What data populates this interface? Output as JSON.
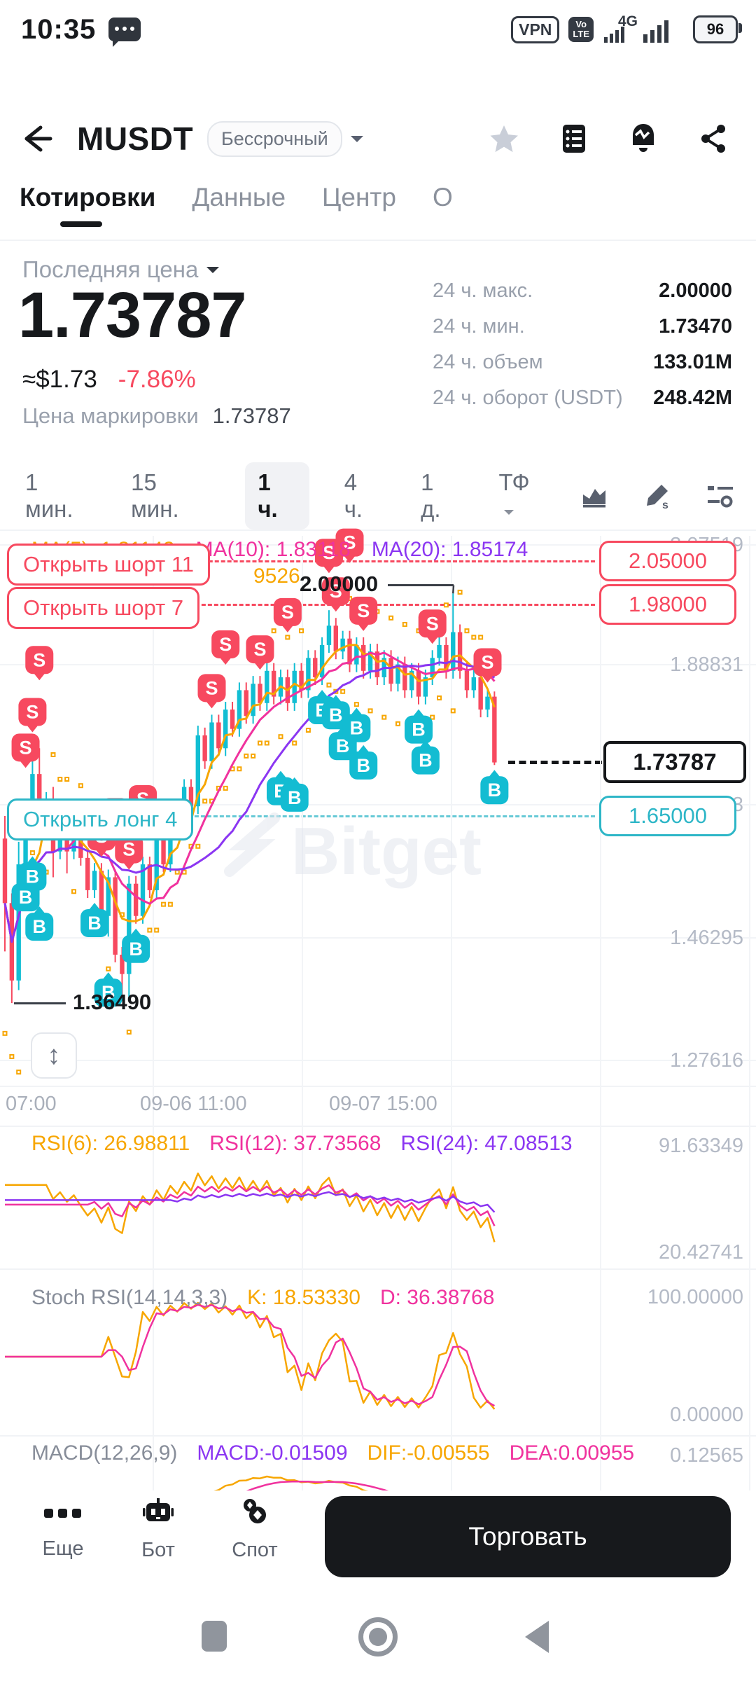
{
  "status_bar": {
    "time": "10:35",
    "vpn": "VPN",
    "volte_line1": "Vo",
    "volte_line2": "LTE",
    "net": "4G",
    "battery": "96"
  },
  "header": {
    "symbol": "MUSDT",
    "contract": "Бессрочный"
  },
  "tabs": [
    {
      "label": "Котировки",
      "active": true
    },
    {
      "label": "Данные",
      "active": false
    },
    {
      "label": "Центр",
      "active": false
    },
    {
      "label": "О",
      "active": false
    }
  ],
  "price_panel": {
    "label": "Последняя цена",
    "price": "1.73787",
    "approx": "≈$1.73",
    "change": "-7.86%",
    "mark_label": "Цена маркировки",
    "mark_price": "1.73787"
  },
  "stats": [
    {
      "label": "24 ч. макс.",
      "value": "2.00000"
    },
    {
      "label": "24 ч. мин.",
      "value": "1.73470"
    },
    {
      "label": "24 ч. объем",
      "value": "133.01M"
    },
    {
      "label": "24 ч. оборот (USDT)",
      "value": "248.42M"
    }
  ],
  "timeframes": [
    {
      "label": "1 мин.",
      "active": false
    },
    {
      "label": "15 мин.",
      "active": false
    },
    {
      "label": "1 ч.",
      "active": true
    },
    {
      "label": "4 ч.",
      "active": false
    },
    {
      "label": "1 д.",
      "active": false
    },
    {
      "label": "ТФ",
      "active": false,
      "dropdown": true
    }
  ],
  "chart": {
    "ma_labels": [
      {
        "text": "MA(5): 1.81143",
        "color": "#f7a600"
      },
      {
        "text": "MA(10): 1.83118",
        "color": "#f0329e"
      },
      {
        "text": "MA(20): 1.85174",
        "color": "#8b36f2"
      }
    ],
    "partial_indicator": "9526",
    "signals": [
      {
        "text": "Открыть шорт 11",
        "price": "2.05000",
        "kind": "short"
      },
      {
        "text": "Открыть шорт 7",
        "price": "1.98000",
        "kind": "short"
      },
      {
        "text": "Открыть лонг 4",
        "price": "1.65000",
        "kind": "long"
      }
    ],
    "current_price": "1.73787",
    "high_annotation": "2.00000",
    "low_annotation": "1.36490",
    "y_axis": [
      "2.07519",
      "1.88831",
      "1.67563",
      "1.46295",
      "1.27616"
    ],
    "x_axis": [
      "07:00",
      "09-06 11:00",
      "09-07 15:00"
    ],
    "watermark": "Bitget"
  },
  "chart_data": {
    "type": "candlestick",
    "interval": "1h",
    "y_top_label": 2.07519,
    "y_bottom_label": 1.27616,
    "session_high": 2.0,
    "session_low": 1.3649,
    "last_price": 1.73787,
    "candles": [
      [
        1.62,
        1.655,
        1.445,
        1.52
      ],
      [
        1.52,
        1.535,
        1.3649,
        1.4
      ],
      [
        1.4,
        1.615,
        1.385,
        1.58
      ],
      [
        1.58,
        1.672,
        1.568,
        1.66
      ],
      [
        1.66,
        1.775,
        1.648,
        1.72
      ],
      [
        1.72,
        1.76,
        1.618,
        1.63
      ],
      [
        1.63,
        1.692,
        1.618,
        1.68
      ],
      [
        1.68,
        1.7,
        1.56,
        1.6
      ],
      [
        1.6,
        1.662,
        1.588,
        1.65
      ],
      [
        1.65,
        1.662,
        1.566,
        1.6
      ],
      [
        1.6,
        1.652,
        1.588,
        1.64
      ],
      [
        1.64,
        1.652,
        1.578,
        1.59
      ],
      [
        1.59,
        1.602,
        1.528,
        1.54
      ],
      [
        1.54,
        1.582,
        1.528,
        1.57
      ],
      [
        1.57,
        1.582,
        1.488,
        1.5
      ],
      [
        1.5,
        1.572,
        1.468,
        1.56
      ],
      [
        1.56,
        1.572,
        1.428,
        1.44
      ],
      [
        1.44,
        1.452,
        1.372,
        1.41
      ],
      [
        1.41,
        1.562,
        1.37,
        1.55
      ],
      [
        1.55,
        1.562,
        1.488,
        1.5
      ],
      [
        1.5,
        1.592,
        1.488,
        1.58
      ],
      [
        1.58,
        1.592,
        1.528,
        1.54
      ],
      [
        1.54,
        1.632,
        1.528,
        1.62
      ],
      [
        1.62,
        1.632,
        1.568,
        1.58
      ],
      [
        1.58,
        1.672,
        1.568,
        1.66
      ],
      [
        1.66,
        1.672,
        1.618,
        1.63
      ],
      [
        1.63,
        1.712,
        1.618,
        1.7
      ],
      [
        1.7,
        1.712,
        1.658,
        1.67
      ],
      [
        1.67,
        1.795,
        1.658,
        1.78
      ],
      [
        1.78,
        1.792,
        1.728,
        1.74
      ],
      [
        1.74,
        1.812,
        1.728,
        1.8
      ],
      [
        1.8,
        1.812,
        1.748,
        1.76
      ],
      [
        1.76,
        1.832,
        1.748,
        1.82
      ],
      [
        1.82,
        1.832,
        1.778,
        1.79
      ],
      [
        1.79,
        1.862,
        1.778,
        1.85
      ],
      [
        1.85,
        1.862,
        1.798,
        1.81
      ],
      [
        1.81,
        1.872,
        1.798,
        1.86
      ],
      [
        1.86,
        1.872,
        1.818,
        1.83
      ],
      [
        1.83,
        1.892,
        1.818,
        1.88
      ],
      [
        1.88,
        1.892,
        1.828,
        1.84
      ],
      [
        1.84,
        1.882,
        1.828,
        1.87
      ],
      [
        1.87,
        1.882,
        1.818,
        1.83
      ],
      [
        1.83,
        1.892,
        1.818,
        1.88
      ],
      [
        1.88,
        1.892,
        1.838,
        1.85
      ],
      [
        1.85,
        1.912,
        1.838,
        1.9
      ],
      [
        1.9,
        1.912,
        1.858,
        1.87
      ],
      [
        1.87,
        1.932,
        1.858,
        1.92
      ],
      [
        1.92,
        1.974,
        1.908,
        1.95
      ],
      [
        1.95,
        1.962,
        1.898,
        1.91
      ],
      [
        1.91,
        1.942,
        1.898,
        1.93
      ],
      [
        1.93,
        1.942,
        1.878,
        1.89
      ],
      [
        1.89,
        1.932,
        1.878,
        1.92
      ],
      [
        1.92,
        1.932,
        1.868,
        1.88
      ],
      [
        1.88,
        1.922,
        1.868,
        1.91
      ],
      [
        1.91,
        1.922,
        1.858,
        1.87
      ],
      [
        1.87,
        1.912,
        1.858,
        1.9
      ],
      [
        1.9,
        1.912,
        1.848,
        1.86
      ],
      [
        1.86,
        1.902,
        1.848,
        1.89
      ],
      [
        1.89,
        1.902,
        1.838,
        1.85
      ],
      [
        1.85,
        1.892,
        1.838,
        1.88
      ],
      [
        1.88,
        1.892,
        1.828,
        1.84
      ],
      [
        1.84,
        1.882,
        1.828,
        1.87
      ],
      [
        1.87,
        1.912,
        1.858,
        1.9
      ],
      [
        1.9,
        1.932,
        1.888,
        1.92
      ],
      [
        1.92,
        1.932,
        1.868,
        1.88
      ],
      [
        1.88,
        2.0,
        1.868,
        1.94
      ],
      [
        1.94,
        1.952,
        1.868,
        1.88
      ],
      [
        1.88,
        1.892,
        1.838,
        1.85
      ],
      [
        1.85,
        1.882,
        1.838,
        1.87
      ],
      [
        1.87,
        1.882,
        1.808,
        1.82
      ],
      [
        1.82,
        1.852,
        1.808,
        1.84
      ],
      [
        1.84,
        1.848,
        1.734,
        1.738
      ]
    ],
    "marker_labels": {
      "buy": "B",
      "sell": "S"
    },
    "sell_markers": [
      [
        3,
        1
      ],
      [
        4,
        0
      ],
      [
        5,
        2
      ],
      [
        14,
        0
      ],
      [
        16,
        1
      ],
      [
        18,
        0
      ],
      [
        20,
        1
      ],
      [
        30,
        0
      ],
      [
        32,
        1
      ],
      [
        37,
        0
      ],
      [
        41,
        1
      ],
      [
        47,
        1
      ],
      [
        48,
        0
      ],
      [
        50,
        2
      ],
      [
        52,
        0
      ],
      [
        62,
        0
      ],
      [
        70,
        0
      ]
    ],
    "buy_markers": [
      [
        3,
        0
      ],
      [
        4,
        1
      ],
      [
        5,
        2
      ],
      [
        13,
        0
      ],
      [
        15,
        1
      ],
      [
        19,
        0
      ],
      [
        40,
        2
      ],
      [
        42,
        2
      ],
      [
        46,
        0
      ],
      [
        48,
        1
      ],
      [
        49,
        2
      ],
      [
        51,
        1
      ],
      [
        52,
        2
      ],
      [
        60,
        0
      ],
      [
        61,
        1
      ],
      [
        71,
        0
      ]
    ],
    "ma_periods": [
      5,
      10,
      20
    ],
    "colors": {
      "up": "#11bed3",
      "down": "#f7495f",
      "ma5": "#f7a600",
      "ma10": "#f0329e",
      "ma20": "#8b36f2",
      "sar": "#f7a600",
      "grid": "#f2f4f7"
    }
  },
  "rsi": {
    "labels": [
      {
        "text": "RSI(6): 26.98811",
        "color": "#f7a600"
      },
      {
        "text": "RSI(12): 37.73568",
        "color": "#f0329e"
      },
      {
        "text": "RSI(24): 47.08513",
        "color": "#8b36f2"
      }
    ],
    "periods": [
      6,
      12,
      24
    ],
    "axis_max": "91.63349",
    "axis_min": "20.42741"
  },
  "stoch": {
    "title": "Stoch RSI(14,14,3,3)",
    "k_label": "K: 18.53330",
    "d_label": "D: 36.38768",
    "axis_max": "100.00000",
    "axis_min": "0.00000"
  },
  "macd": {
    "title": "MACD(12,26,9)",
    "macd_label": "MACD:-0.01509",
    "dif_label": "DIF:-0.00555",
    "dea_label": "DEA:0.00955",
    "axis_max": "0.12565"
  },
  "bottom_bar": {
    "items": [
      {
        "label": "Еще",
        "icon": "more-icon"
      },
      {
        "label": "Бот",
        "icon": "bot-icon"
      },
      {
        "label": "Спот",
        "icon": "spot-icon"
      }
    ],
    "trade_button": "Торговать"
  }
}
